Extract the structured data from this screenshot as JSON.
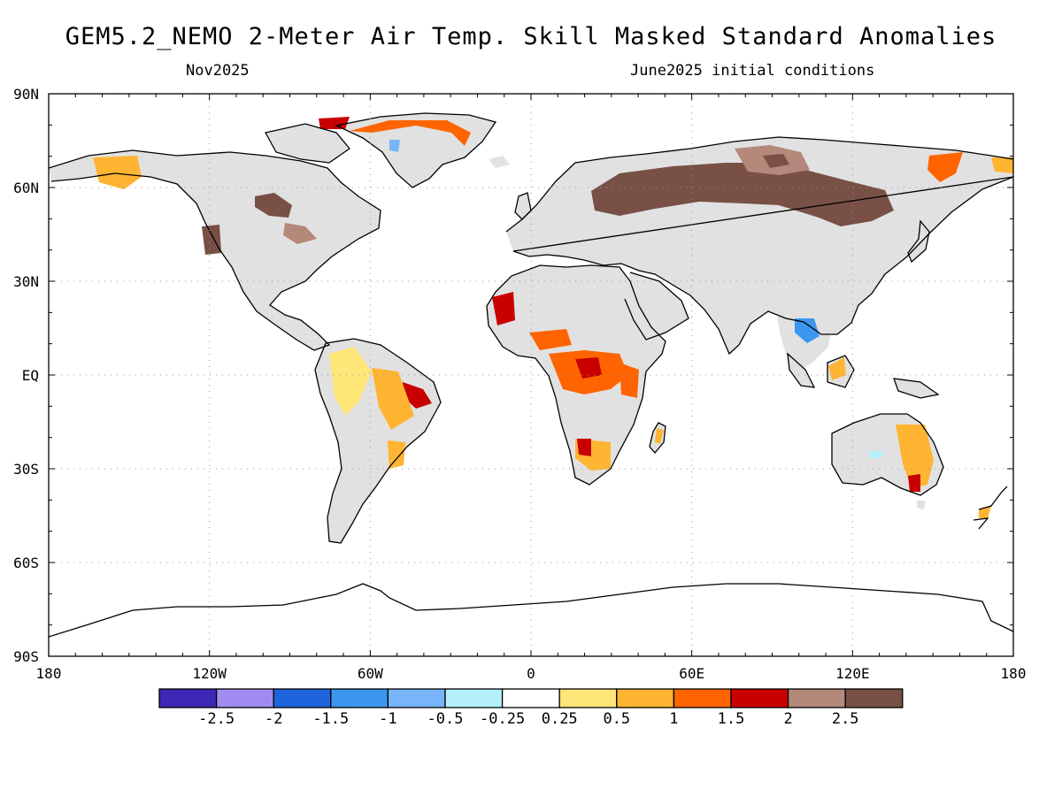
{
  "header": {
    "title": "GEM5.2_NEMO 2-Meter Air Temp. Skill Masked Standard Anomalies",
    "valid_month": "Nov2025",
    "initial_conditions": "June2025 initial conditions"
  },
  "axes": {
    "lat_labels": [
      {
        "lat": 90,
        "label": "90N"
      },
      {
        "lat": 60,
        "label": "60N"
      },
      {
        "lat": 30,
        "label": "30N"
      },
      {
        "lat": 0,
        "label": "EQ"
      },
      {
        "lat": -30,
        "label": "30S"
      },
      {
        "lat": -60,
        "label": "60S"
      },
      {
        "lat": -90,
        "label": "90S"
      }
    ],
    "lon_labels": [
      {
        "lon": -180,
        "label": "180"
      },
      {
        "lon": -120,
        "label": "120W"
      },
      {
        "lon": -60,
        "label": "60W"
      },
      {
        "lon": 0,
        "label": "0"
      },
      {
        "lon": 60,
        "label": "60E"
      },
      {
        "lon": 120,
        "label": "120E"
      },
      {
        "lon": 180,
        "label": "180"
      }
    ],
    "grid_lats": [
      60,
      30,
      0,
      -30,
      -60
    ],
    "grid_lons": [
      -120,
      -60,
      0,
      60,
      120
    ]
  },
  "legend": {
    "colors": [
      "#3c28b4",
      "#a08cf0",
      "#1e64dc",
      "#3c96f0",
      "#78b4f8",
      "#b4f0fa",
      "#ffffff",
      "#ffe678",
      "#ffb432",
      "#ff6400",
      "#c80000",
      "#b4887a",
      "#785046"
    ],
    "labels": [
      "-2.5",
      "-2",
      "-1.5",
      "-1",
      "-0.5",
      "-0.25",
      "0.25",
      "0.5",
      "1",
      "1.5",
      "2",
      "2.5"
    ]
  },
  "mask_color": "#e1e1e1"
}
